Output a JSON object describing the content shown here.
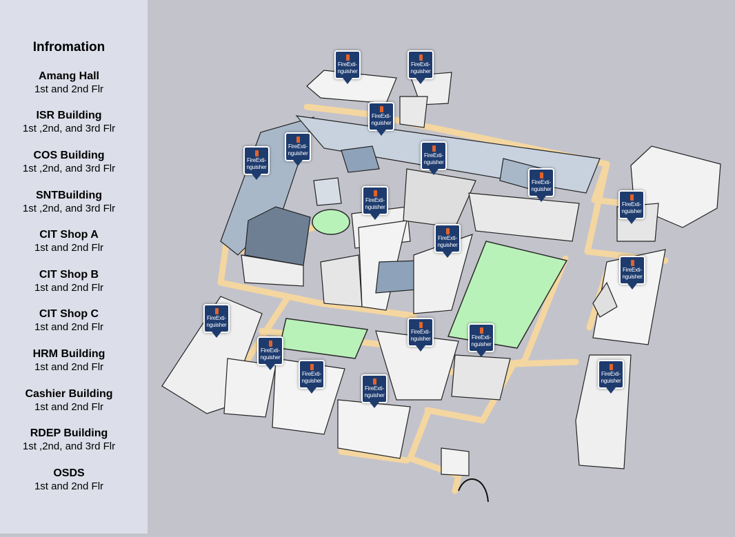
{
  "sidebar": {
    "title": "Infromation",
    "buildings": [
      {
        "name": "Amang Hall",
        "floors": "1st and 2nd Flr"
      },
      {
        "name": "ISR Building",
        "floors": "1st ,2nd, and 3rd Flr"
      },
      {
        "name": "COS Building",
        "floors": "1st ,2nd, and 3rd Flr"
      },
      {
        "name": "SNTBuilding",
        "floors": "1st ,2nd, and 3rd Flr"
      },
      {
        "name": "CIT Shop A",
        "floors": "1st and 2nd Flr"
      },
      {
        "name": "CIT Shop B",
        "floors": "1st and 2nd Flr"
      },
      {
        "name": "CIT Shop C",
        "floors": "1st and 2nd Flr"
      },
      {
        "name": "HRM Building",
        "floors": "1st and 2nd Flr"
      },
      {
        "name": "Cashier Building",
        "floors": "1st and 2nd Flr"
      },
      {
        "name": "RDEP Building",
        "floors": "1st ,2nd, and 3rd Flr"
      },
      {
        "name": "OSDS",
        "floors": "1st and 2nd Flr"
      }
    ]
  },
  "marker": {
    "label_line1": "FireExti-",
    "label_line2": "nguisher",
    "icon": "fire-extinguisher-icon"
  },
  "colors": {
    "sidebar_bg": "#dcdee9",
    "map_bg": "#c3c3cb",
    "path": "#f4d6a0",
    "lawn": "#b9f2b9",
    "marker": "#1e3b6e",
    "extinguisher": "#e2632a"
  }
}
